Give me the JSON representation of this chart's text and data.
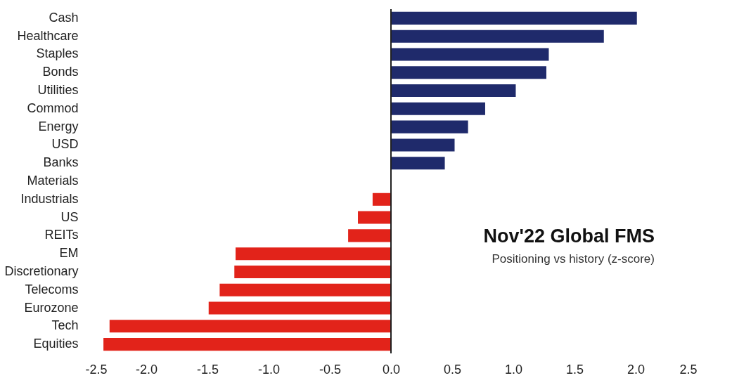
{
  "chart_data": {
    "type": "bar",
    "orientation": "horizontal",
    "title": "Nov'22 Global FMS",
    "subtitle": "Positioning vs history (z-score)",
    "categories": [
      "Cash",
      "Healthcare",
      "Staples",
      "Bonds",
      "Utilities",
      "Commod",
      "Energy",
      "USD",
      "Banks",
      "Materials",
      "Industrials",
      "US",
      "REITs",
      "EM",
      "Discretionary",
      "Telecoms",
      "Eurozone",
      "Tech",
      "Equities"
    ],
    "values": [
      2.01,
      1.74,
      1.29,
      1.27,
      1.02,
      0.77,
      0.63,
      0.52,
      0.44,
      0.0,
      -0.15,
      -0.27,
      -0.35,
      -1.27,
      -1.28,
      -1.4,
      -1.49,
      -2.3,
      -2.35
    ],
    "colors": [
      "#1f2a6b",
      "#1f2a6b",
      "#1f2a6b",
      "#1f2a6b",
      "#1f2a6b",
      "#1f2a6b",
      "#1f2a6b",
      "#1f2a6b",
      "#1f2a6b",
      "#1f2a6b",
      "#e2231a",
      "#e2231a",
      "#e2231a",
      "#e2231a",
      "#e2231a",
      "#e2231a",
      "#e2231a",
      "#e2231a",
      "#e2231a"
    ],
    "xlim": [
      -2.5,
      2.5
    ],
    "xticks": [
      {
        "value": -2.5,
        "label": "-2.5"
      },
      {
        "value": -2,
        "label": "-2.0"
      },
      {
        "value": -1.5,
        "label": "-1.5"
      },
      {
        "value": -1,
        "label": "-1.0"
      },
      {
        "value": -0.5,
        "label": "-0.5"
      },
      {
        "value": 0,
        "label": "0.0"
      },
      {
        "value": 0.5,
        "label": "0.5"
      },
      {
        "value": 1,
        "label": "1.0"
      },
      {
        "value": 1.5,
        "label": "1.5"
      },
      {
        "value": 2,
        "label": "2.0"
      },
      {
        "value": 2.5,
        "label": "2.5"
      }
    ],
    "relative": false
  }
}
